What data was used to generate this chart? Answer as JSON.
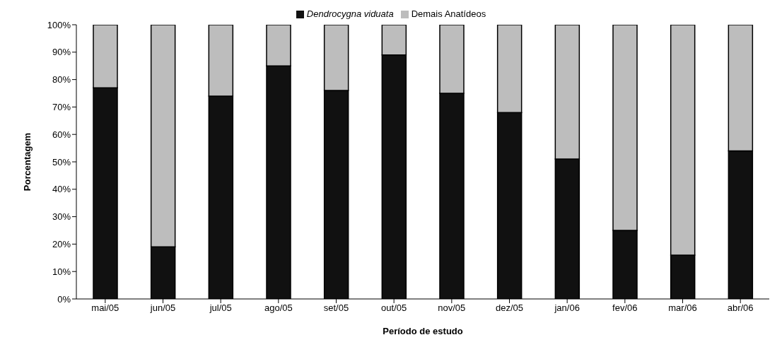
{
  "chart_data": {
    "type": "bar",
    "stacked": true,
    "categories": [
      "mai/05",
      "jun/05",
      "jul/05",
      "ago/05",
      "set/05",
      "out/05",
      "nov/05",
      "dez/05",
      "jan/06",
      "fev/06",
      "mar/06",
      "abr/06"
    ],
    "series": [
      {
        "name": "Dendrocygna viduata",
        "color": "#111111",
        "values": [
          77,
          19,
          74,
          85,
          76,
          89,
          75,
          68,
          51,
          25,
          16,
          54
        ]
      },
      {
        "name": "Demais Anatídeos",
        "color": "#bdbdbd",
        "values": [
          23,
          81,
          26,
          15,
          24,
          11,
          25,
          32,
          49,
          75,
          84,
          46
        ]
      }
    ],
    "ylim": [
      0,
      100
    ],
    "yticks": [
      {
        "value": 0,
        "label": "0%"
      },
      {
        "value": 10,
        "label": "10%"
      },
      {
        "value": 20,
        "label": "20%"
      },
      {
        "value": 30,
        "label": "30%"
      },
      {
        "value": 40,
        "label": "40%"
      },
      {
        "value": 50,
        "label": "50%"
      },
      {
        "value": 60,
        "label": "60%"
      },
      {
        "value": 70,
        "label": "70%"
      },
      {
        "value": 80,
        "label": "80%"
      },
      {
        "value": 90,
        "label": "90%"
      },
      {
        "value": 100,
        "label": "100%"
      }
    ],
    "xlabel": "Período de estudo",
    "ylabel": "Porcentagem",
    "grid": false,
    "legend": "top"
  }
}
